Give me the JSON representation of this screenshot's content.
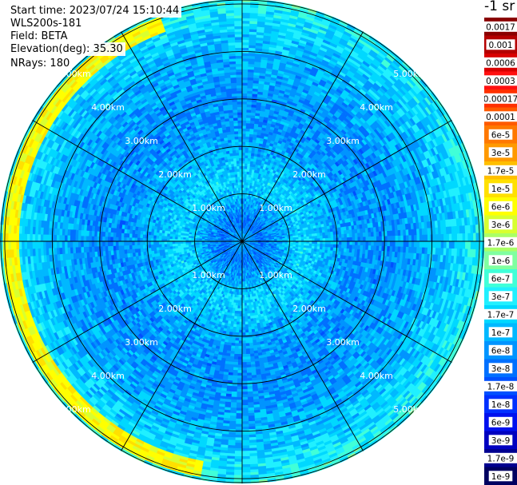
{
  "header": {
    "start_time": "Start time: 2023/07/24 15:10:44",
    "instrument": "WLS200s-181",
    "field": "Field: BETA",
    "elevation": "Elevation(deg): 35.30",
    "nrays": "NRays: 180"
  },
  "chart_data": {
    "type": "heatmap",
    "projection": "polar-ppi",
    "title": "",
    "range_rings_km": [
      1,
      2,
      3,
      4,
      5
    ],
    "ring_labels": [
      "1.00km",
      "2.00km",
      "3.00km",
      "4.00km",
      "5.00km"
    ],
    "radial_spokes_deg": [
      0,
      30,
      60,
      90,
      120,
      150,
      180,
      210,
      240,
      270,
      300,
      330
    ],
    "max_range_km": 5.1,
    "nrays": 180,
    "field": "BETA",
    "colorbar": {
      "unit_label": "-1 sr",
      "ticks": [
        "0.0017",
        "0.001",
        "0.0006",
        "0.0003",
        "0.00017",
        "0.0001",
        "6e-5",
        "3e-5",
        "1.7e-5",
        "1e-5",
        "6e-6",
        "3e-6",
        "1.7e-6",
        "1e-6",
        "6e-7",
        "3e-7",
        "1.7e-7",
        "1e-7",
        "6e-8",
        "3e-8",
        "1.7e-8",
        "1e-8",
        "6e-9",
        "3e-9",
        "1.7e-9",
        "1e-9"
      ],
      "colors": [
        "#8a0000",
        "#b40000",
        "#d80000",
        "#ff1010",
        "#ff3000",
        "#ff5a00",
        "#ff7800",
        "#ff9900",
        "#ffbf00",
        "#ffe000",
        "#ffff00",
        "#d8ff30",
        "#aaff66",
        "#80ffa0",
        "#40ffd8",
        "#20f0ff",
        "#00d8ff",
        "#00b8ff",
        "#0094ff",
        "#0070ff",
        "#0050ff",
        "#0030ff",
        "#0010ee",
        "#0000c0",
        "#000090",
        "#000060"
      ]
    },
    "profile": [
      {
        "range_km": 0.0,
        "level": 17
      },
      {
        "range_km": 0.4,
        "level": 19
      },
      {
        "range_km": 0.9,
        "level": 17
      },
      {
        "range_km": 1.3,
        "level": 16
      },
      {
        "range_km": 1.8,
        "level": 17
      },
      {
        "range_km": 2.5,
        "level": 18
      },
      {
        "range_km": 3.2,
        "level": 18
      },
      {
        "range_km": 4.0,
        "level": 17
      },
      {
        "range_km": 4.6,
        "level": 16
      },
      {
        "range_km": 5.0,
        "level": 15
      }
    ],
    "enhanced_arc": {
      "range_km": [
        4.7,
        5.05
      ],
      "azimuth_deg": [
        190,
        340
      ],
      "levels": [
        9,
        11
      ]
    }
  }
}
